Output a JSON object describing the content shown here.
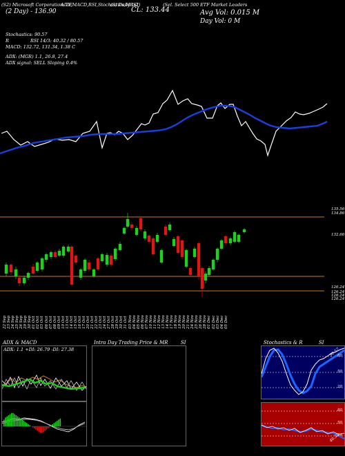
{
  "header": {
    "left_title": "(S2) Microsoft Corporation: LE",
    "chart_links": "ADX,MACD,RSI,Stochastics,MRSI",
    "symbol_left": "(S) Daily (x2)",
    "symbol_right": "(Sel. Select 500 ETF Market Leaders",
    "close_label": "CL: 133.44",
    "avg_vol": "Avg Vol: 0.015 M",
    "day_vol": "Day Vol: 0   M",
    "line2_left": "(2 Day) - 136.90"
  },
  "indicators": {
    "stochastics": "Stochastics: 90.57",
    "rsi": "RSI 14/3: 40.32 / 80.57",
    "rsi_prefix": "R",
    "macd": "MACD: 132.72, 131.34, 1.38  C",
    "adx": "ADX:                         (MGR) 1.1, 26.8, 27.4",
    "adx_signal": "ADX  signal: SELL Sloping 0.4%"
  },
  "price_axis": {
    "labels": [
      "135.56",
      "134.86",
      "132.66",
      "126.24",
      "126.24",
      "126.24",
      "126.24"
    ]
  },
  "dates": [
    "22 Sep",
    "23 Sep",
    "24 Sep",
    "25 Sep",
    "26 Sep",
    "29 Sep",
    "30 Sep",
    "01 Oct",
    "02 Oct",
    "03 Oct",
    "06 Oct",
    "07 Oct",
    "08 Oct",
    "09 Oct",
    "10 Oct",
    "13 Oct",
    "14 Oct",
    "15 Oct",
    "16 Oct",
    "17 Oct",
    "20 Oct",
    "21 Oct",
    "22 Oct",
    "23 Oct",
    "24 Oct",
    "27 Oct",
    "28 Oct",
    "29 Oct",
    "30 Oct",
    "31 Oct",
    "03 Nov",
    "04 Nov",
    "05 Nov",
    "06 Nov",
    "07 Nov",
    "10 Nov",
    "11 Nov",
    "12 Nov",
    "13 Nov",
    "14 Nov",
    "17 Nov",
    "18 Nov",
    "19 Nov",
    "20 Nov",
    "21 Nov",
    "24 Nov",
    "25 Nov",
    "26 Nov",
    "28 Nov",
    "01 Dec",
    "02 Dec",
    "03 Dec",
    "04 Dec",
    "05 Dec"
  ],
  "panels": {
    "adx_title": "ADX  & MACD",
    "adx_values": "ADX: 1.1  +DI: 26.79  -DI: 27.38",
    "intraday_title": "Intra  Day Trading Price  & MR",
    "intraday_suffix": "SI",
    "stoch_title": "Stochastics & R",
    "stoch_suffix": "SI",
    "stoch_ticks": [
      "80",
      "50",
      "20"
    ],
    "rsi_ticks": [
      "80",
      "50",
      "20"
    ],
    "stoch_value": "90.57",
    "rsi_value": "40.32"
  },
  "colors": {
    "background": "#000000",
    "up": "#1fd11f",
    "down": "#e01515",
    "ma": "#1a3fe0",
    "price_line": "#ffffff",
    "level": "#c87a2a",
    "panel_red": "#a80000",
    "panel_navy": "#000060"
  }
}
